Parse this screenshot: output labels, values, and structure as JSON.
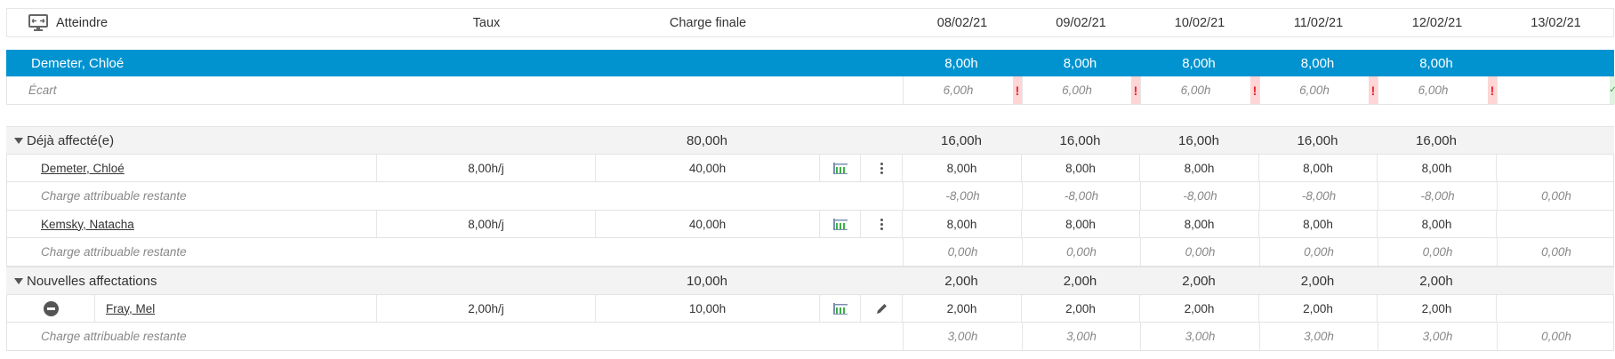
{
  "header": {
    "goto_label": "Atteindre",
    "goto_icon": "monitor-arrows-icon",
    "rate_label": "Taux",
    "final_load_label": "Charge finale",
    "dates": [
      "08/02/21",
      "09/02/21",
      "10/02/21",
      "11/02/21",
      "12/02/21",
      "13/02/21"
    ]
  },
  "resource": {
    "name": "Demeter, Chloé",
    "color": "#0093d0",
    "days": [
      "8,00h",
      "8,00h",
      "8,00h",
      "8,00h",
      "8,00h",
      ""
    ]
  },
  "gap": {
    "label": "Écart",
    "days": [
      "6,00h",
      "6,00h",
      "6,00h",
      "6,00h",
      "6,00h",
      ""
    ],
    "status": [
      "error",
      "error",
      "error",
      "error",
      "error",
      "ok"
    ],
    "error_glyph": "!",
    "ok_glyph": "✓",
    "error_color": "#e8232d",
    "ok_color": "#3aa13a"
  },
  "groups": [
    {
      "label": "Déjà affecté(e)",
      "total": "80,00h",
      "days": [
        "16,00h",
        "16,00h",
        "16,00h",
        "16,00h",
        "16,00h",
        ""
      ],
      "items": [
        {
          "name": "Demeter, Chloé",
          "rate": "8,00h/j",
          "load": "40,00h",
          "action_icon": "more-vertical-icon",
          "removable": false,
          "days": [
            "8,00h",
            "8,00h",
            "8,00h",
            "8,00h",
            "8,00h",
            ""
          ],
          "remaining_label": "Charge attribuable restante",
          "remaining": [
            "-8,00h",
            "-8,00h",
            "-8,00h",
            "-8,00h",
            "-8,00h",
            "0,00h"
          ]
        },
        {
          "name": "Kemsky, Natacha",
          "rate": "8,00h/j",
          "load": "40,00h",
          "action_icon": "more-vertical-icon",
          "removable": false,
          "days": [
            "8,00h",
            "8,00h",
            "8,00h",
            "8,00h",
            "8,00h",
            ""
          ],
          "remaining_label": "Charge attribuable restante",
          "remaining": [
            "0,00h",
            "0,00h",
            "0,00h",
            "0,00h",
            "0,00h",
            "0,00h"
          ]
        }
      ]
    },
    {
      "label": "Nouvelles affectations",
      "total": "10,00h",
      "days": [
        "2,00h",
        "2,00h",
        "2,00h",
        "2,00h",
        "2,00h",
        ""
      ],
      "items": [
        {
          "name": "Fray, Mel",
          "rate": "2,00h/j",
          "load": "10,00h",
          "action_icon": "pencil-icon",
          "removable": true,
          "days": [
            "2,00h",
            "2,00h",
            "2,00h",
            "2,00h",
            "2,00h",
            ""
          ],
          "remaining_label": "Charge attribuable restante",
          "remaining": [
            "3,00h",
            "3,00h",
            "3,00h",
            "3,00h",
            "3,00h",
            "0,00h"
          ]
        }
      ]
    }
  ]
}
